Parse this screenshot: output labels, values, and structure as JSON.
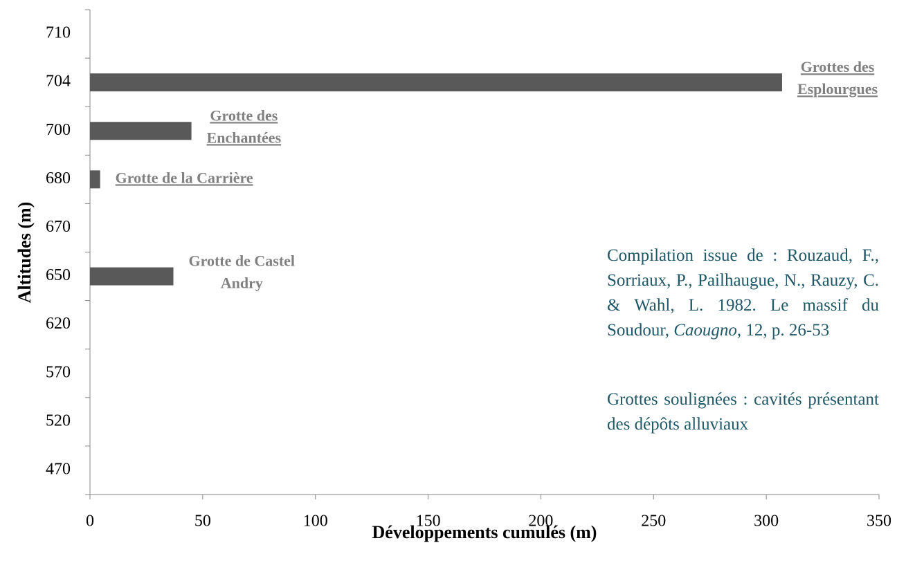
{
  "chart_data": {
    "type": "barh",
    "xlabel": "Développements cumulés (m)",
    "ylabel": "Altitudes (m)",
    "categories": [
      "470",
      "520",
      "570",
      "620",
      "650",
      "670",
      "680",
      "700",
      "704",
      "710"
    ],
    "values": [
      null,
      null,
      null,
      null,
      37,
      null,
      4.5,
      45,
      307,
      null
    ],
    "bar_labels": [
      null,
      null,
      null,
      null,
      [
        "Grotte de Castel",
        "Andry"
      ],
      null,
      [
        "Grotte de la Carrière"
      ],
      [
        "Grotte des",
        "Enchantées"
      ],
      [
        "Grottes des",
        "Esplourgues"
      ],
      null
    ],
    "bar_labels_underlined": [
      false,
      false,
      false,
      false,
      false,
      false,
      true,
      true,
      true,
      false
    ],
    "color": "#595959",
    "xlim": [
      0,
      350
    ],
    "xticks": [
      0,
      50,
      100,
      150,
      200,
      250,
      300,
      350
    ],
    "notes": [
      {
        "text": "Compilation issue de : Rouzaud, F., Sorriaux, P., Pailhaugue, N., Rauzy, C. & Wahl, L. 1982. Le massif du Soudour, ",
        "italic": "Caougno",
        "after": ", 12, p. 26-53"
      },
      {
        "text": "Grottes soulignées : cavités présentant des dépôts alluviaux"
      }
    ]
  }
}
